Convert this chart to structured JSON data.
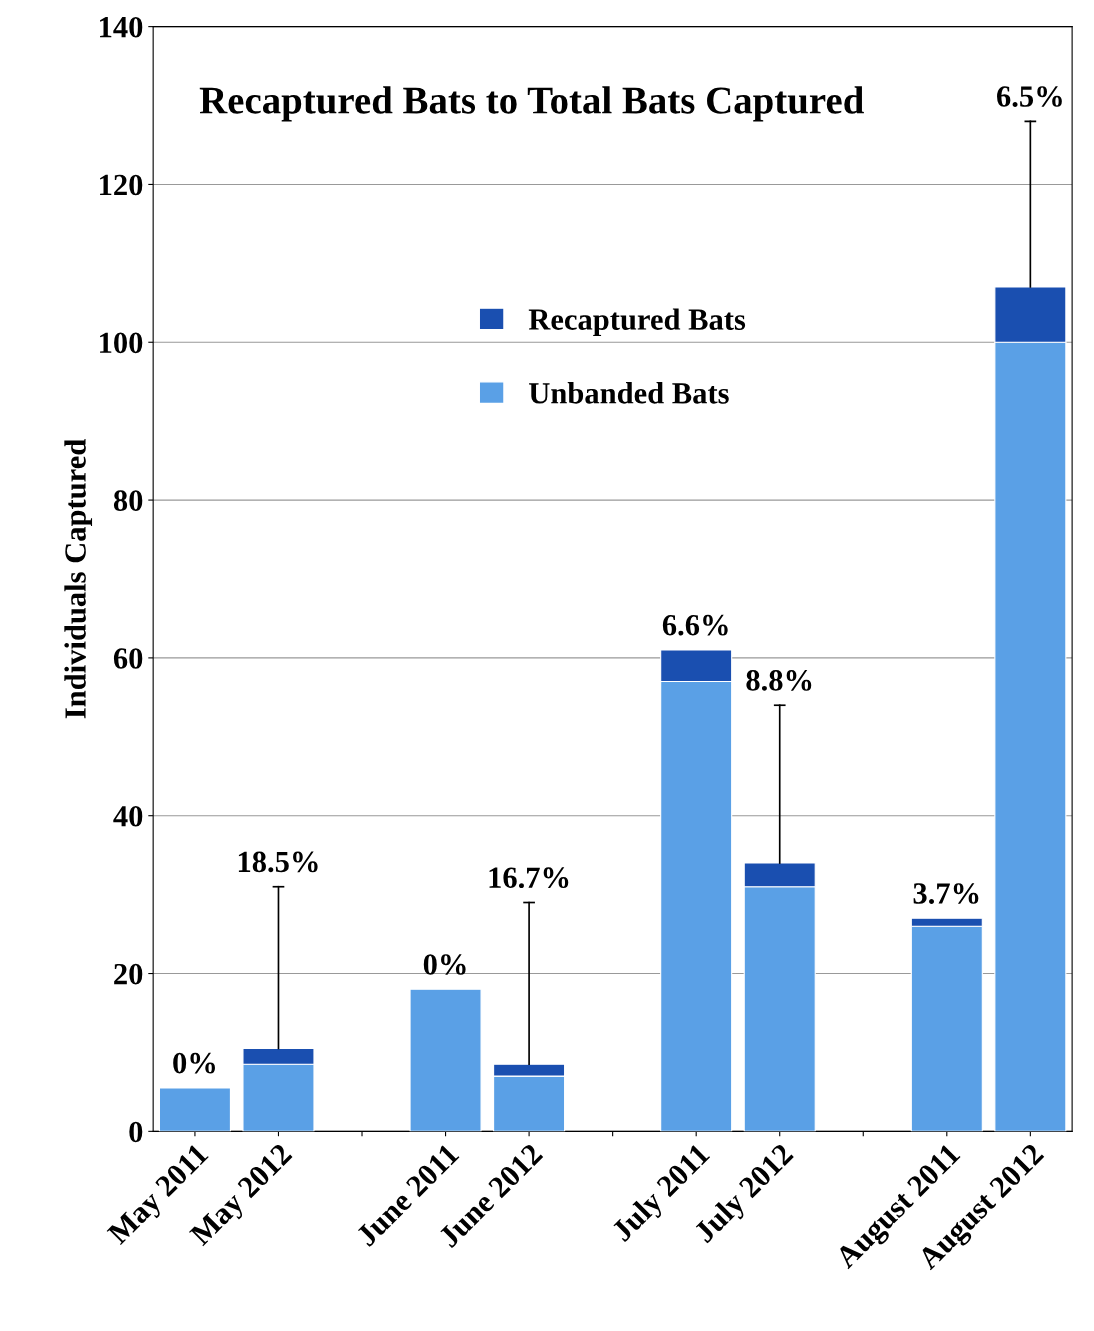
{
  "chart_data": {
    "type": "bar",
    "title": "Recaptured Bats to Total Bats Captured",
    "ylabel": "Individuals Captured",
    "categories": [
      "May 2011",
      "May 2012",
      null,
      "June 2011",
      "June 2012",
      null,
      "July 2011",
      "July 2012",
      null,
      "August 2011",
      "August 2012"
    ],
    "stacked": true,
    "series": [
      {
        "name": "Unbanded Bats",
        "color": "#5aa0e6",
        "values": [
          5.5,
          8.5,
          null,
          18,
          7,
          null,
          57,
          31,
          null,
          26,
          100
        ]
      },
      {
        "name": "Recaptured Bats",
        "color": "#1a4fb0",
        "values": [
          0,
          2,
          null,
          0,
          1.5,
          null,
          4,
          3,
          null,
          1,
          7
        ],
        "errors": [
          null,
          [
            10.5,
            31
          ],
          null,
          null,
          [
            8.5,
            29
          ],
          null,
          null,
          [
            34,
            54
          ],
          null,
          null,
          [
            107,
            128
          ]
        ]
      }
    ],
    "annotations": [
      {
        "text": "0%",
        "x": "May 2011",
        "y": 5.5
      },
      {
        "text": "18.5%",
        "x": "May 2012",
        "y": 31
      },
      {
        "text": "0%",
        "x": "June 2011",
        "y": 18
      },
      {
        "text": "16.7%",
        "x": "June 2012",
        "y": 29
      },
      {
        "text": "6.6%",
        "x": "July 2011",
        "y": 61
      },
      {
        "text": "8.8%",
        "x": "July 2012",
        "y": 54
      },
      {
        "text": "3.7%",
        "x": "August 2011",
        "y": 27
      },
      {
        "text": "6.5%",
        "x": "August 2012",
        "y": 128
      }
    ],
    "ylim": [
      0,
      140
    ],
    "yticks": [
      0,
      20,
      40,
      60,
      80,
      100,
      120,
      140
    ],
    "grid": "y",
    "legend": "top"
  }
}
